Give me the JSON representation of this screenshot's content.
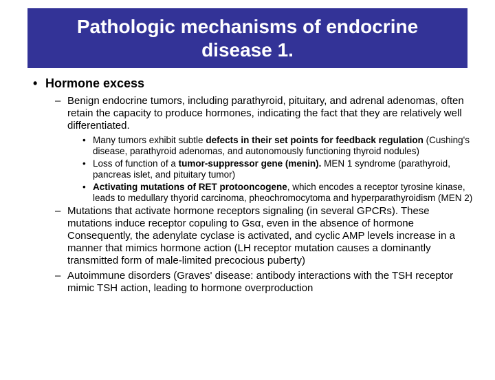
{
  "title": "Pathologic mechanisms of endocrine disease 1.",
  "l1": "Hormone excess",
  "l2a_pre": "Benign endocrine tumors, including parathyroid, pituitary, and adrenal adenomas, often retain the capacity to produce hormones, indicating the fact that they are relatively well differentiated.",
  "l3a_pre": "Many tumors exhibit subtle ",
  "l3a_bold": "defects in their set points for feedback regulation",
  "l3a_post": " (Cushing's disease, parathyroid adenomas, and autonomously functioning thyroid nodules)",
  "l3b_pre": "Loss of function of a ",
  "l3b_bold": "tumor-suppressor gene (menin).",
  "l3b_post": " MEN 1 syndrome (parathyroid, pancreas islet, and pituitary tumor)",
  "l3c_bold": "Activating mutations of RET protooncogene",
  "l3c_post": ", which encodes a receptor tyrosine kinase, leads to medullary thyorid carcinoma, pheochromocytoma and hyperparathyroidism (MEN 2)",
  "l2b": "Mutations that activate hormone receptors signaling (in several GPCRs). These mutations induce receptor copuling to Gsα, even in the absence of hormone Consequently, the adenylate cyclase is activated, and cyclic AMP levels increase in a manner that mimics hormone action (LH receptor mutation causes a dominantly transmitted form of male-limited precocious puberty)",
  "l2c": "Autoimmune disorders (Graves' disease: antibody interactions with the TSH receptor mimic TSH action, leading to hormone overproduction",
  "colors": {
    "title_bg": "#333397",
    "title_fg": "#ffffff",
    "body_bg": "#ffffff",
    "text": "#000000"
  },
  "fonts": {
    "title_size": 28,
    "l1_size": 18,
    "l2_size": 15,
    "l3_size": 13.5
  }
}
